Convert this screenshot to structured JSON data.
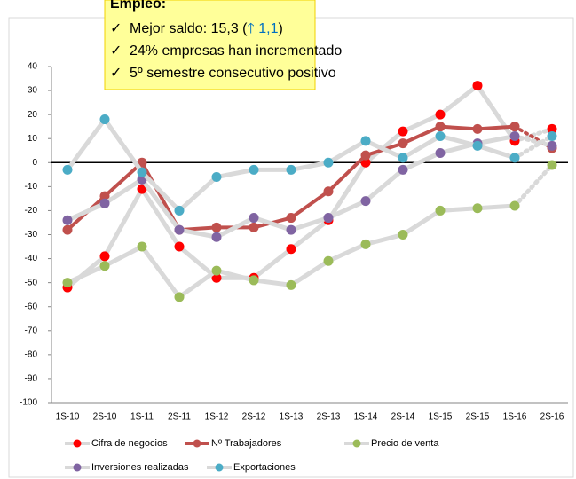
{
  "chart_data": {
    "type": "line",
    "categories": [
      "1S-10",
      "2S-10",
      "1S-11",
      "2S-11",
      "1S-12",
      "2S-12",
      "1S-13",
      "2S-13",
      "1S-14",
      "2S-14",
      "1S-15",
      "2S-15",
      "1S-16",
      "2S-16"
    ],
    "series": [
      {
        "name": "Cifra de negocios",
        "color": "#ff0000",
        "line_color": "#d9d9d9",
        "values": [
          -52,
          -39,
          -11,
          -35,
          -48,
          -48,
          -36,
          -24,
          0,
          13,
          20,
          32,
          9,
          14
        ]
      },
      {
        "name": "Nº Trabajadores",
        "color": "#c0504d",
        "line_color": "#c0504d",
        "values": [
          -28,
          -14,
          0,
          -28,
          -27,
          -27,
          -23,
          -12,
          3,
          8,
          15,
          14,
          15,
          6
        ]
      },
      {
        "name": "Precio de venta",
        "color": "#9bbb59",
        "line_color": "#d9d9d9",
        "values": [
          -50,
          -43,
          -35,
          -56,
          -45,
          -49,
          -51,
          -41,
          -34,
          -30,
          -20,
          -19,
          -18,
          -1
        ]
      },
      {
        "name": "Inversiones realizadas",
        "color": "#8064a2",
        "line_color": "#d9d9d9",
        "values": [
          -24,
          -17,
          -7,
          -28,
          -31,
          -23,
          -28,
          -23,
          -16,
          -3,
          4,
          8,
          11,
          7
        ]
      },
      {
        "name": "Exportaciones",
        "color": "#4bacc6",
        "line_color": "#d9d9d9",
        "values": [
          -3,
          18,
          -4,
          -20,
          -6,
          -3,
          -3,
          0,
          9,
          2,
          11,
          7,
          2,
          11
        ]
      }
    ],
    "ylim": [
      -100,
      40
    ],
    "yticks": [
      -100,
      -90,
      -80,
      -70,
      -60,
      -50,
      -40,
      -30,
      -20,
      -10,
      0,
      10,
      20,
      30,
      40
    ],
    "legend": "bottom",
    "annotation": {
      "title": "Empleo:",
      "bullet": "✓",
      "line1": [
        "Mejor saldo: 15,3 (",
        "🡑 1,1",
        ")"
      ],
      "line2": "24% empresas han incrementado",
      "line3": "5º semestre consecutivo positivo"
    }
  }
}
